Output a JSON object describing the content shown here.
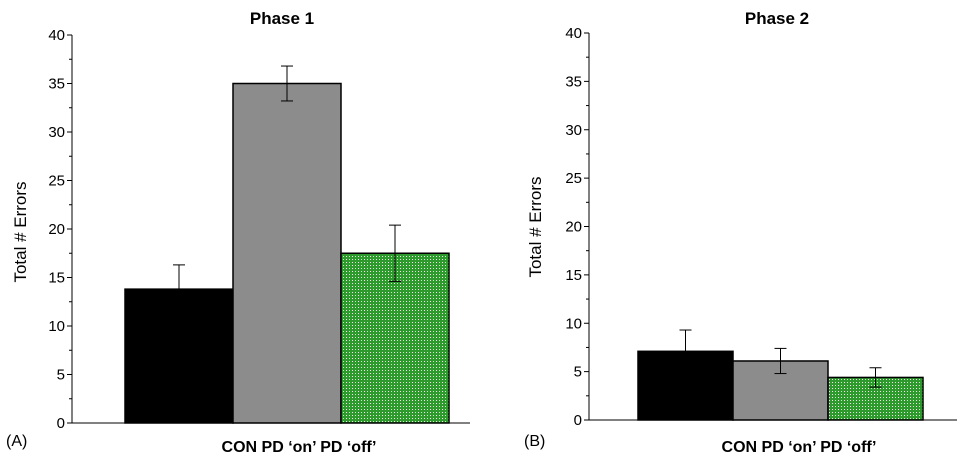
{
  "chart_data": [
    {
      "type": "bar",
      "panel_label": "(A)",
      "title": "Phase 1",
      "xlabel": "CON PD ‘on’ PD ‘off’",
      "ylabel": "Total # Errors",
      "ylim": [
        0,
        40
      ],
      "yticks": [
        "0",
        "5",
        "10",
        "15",
        "20",
        "25",
        "30",
        "35",
        "40"
      ],
      "grid": false,
      "categories": [
        "CON",
        "PD ‘on’",
        "PD ‘off’"
      ],
      "values": [
        13.8,
        35.0,
        17.5
      ],
      "errors": [
        2.5,
        1.8,
        2.9
      ],
      "colors": [
        "#000000",
        "#8c8c8c",
        "#2e9a2e"
      ]
    },
    {
      "type": "bar",
      "panel_label": "(B)",
      "title": "Phase 2",
      "xlabel": "CON PD ‘on’ PD ‘off’",
      "ylabel": "Total # Errors",
      "ylim": [
        0,
        40
      ],
      "yticks": [
        "0",
        "5",
        "10",
        "15",
        "20",
        "25",
        "30",
        "35",
        "40"
      ],
      "grid": false,
      "categories": [
        "CON",
        "PD ‘on’",
        "PD ‘off’"
      ],
      "values": [
        7.1,
        6.1,
        4.4
      ],
      "errors": [
        2.2,
        1.3,
        1.0
      ],
      "colors": [
        "#000000",
        "#8c8c8c",
        "#2e9a2e"
      ]
    }
  ]
}
